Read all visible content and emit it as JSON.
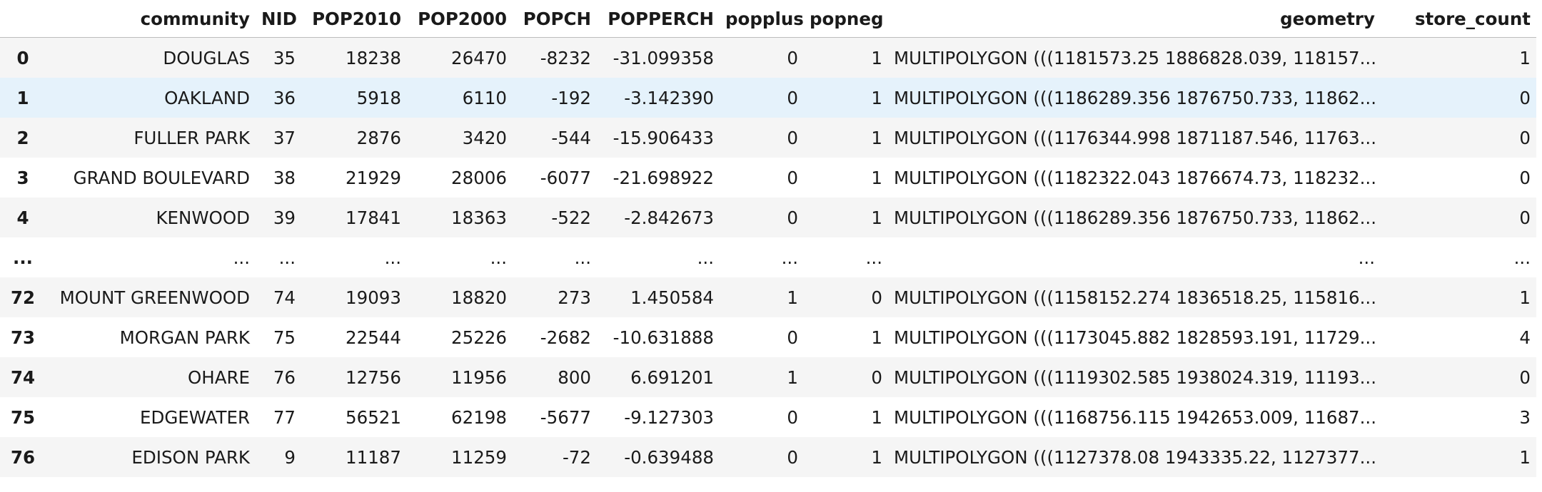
{
  "table": {
    "columns": [
      "",
      "community",
      "NID",
      "POP2010",
      "POP2000",
      "POPCH",
      "POPPERCH",
      "popplus",
      "popneg",
      "geometry",
      "store_count"
    ],
    "rows": [
      {
        "index": "0",
        "cells": [
          "DOUGLAS",
          "35",
          "18238",
          "26470",
          "-8232",
          "-31.099358",
          "0",
          "1",
          "MULTIPOLYGON (((1181573.25 1886828.039, 118157...",
          "1"
        ]
      },
      {
        "index": "1",
        "cells": [
          "OAKLAND",
          "36",
          "5918",
          "6110",
          "-192",
          "-3.142390",
          "0",
          "1",
          "MULTIPOLYGON (((1186289.356 1876750.733, 11862...",
          "0"
        ]
      },
      {
        "index": "2",
        "cells": [
          "FULLER PARK",
          "37",
          "2876",
          "3420",
          "-544",
          "-15.906433",
          "0",
          "1",
          "MULTIPOLYGON (((1176344.998 1871187.546, 11763...",
          "0"
        ]
      },
      {
        "index": "3",
        "cells": [
          "GRAND BOULEVARD",
          "38",
          "21929",
          "28006",
          "-6077",
          "-21.698922",
          "0",
          "1",
          "MULTIPOLYGON (((1182322.043 1876674.73, 118232...",
          "0"
        ]
      },
      {
        "index": "4",
        "cells": [
          "KENWOOD",
          "39",
          "17841",
          "18363",
          "-522",
          "-2.842673",
          "0",
          "1",
          "MULTIPOLYGON (((1186289.356 1876750.733, 11862...",
          "0"
        ]
      },
      {
        "index": "...",
        "cells": [
          "...",
          "...",
          "...",
          "...",
          "...",
          "...",
          "...",
          "...",
          "...",
          "..."
        ]
      },
      {
        "index": "72",
        "cells": [
          "MOUNT GREENWOOD",
          "74",
          "19093",
          "18820",
          "273",
          "1.450584",
          "1",
          "0",
          "MULTIPOLYGON (((1158152.274 1836518.25, 115816...",
          "1"
        ]
      },
      {
        "index": "73",
        "cells": [
          "MORGAN PARK",
          "75",
          "22544",
          "25226",
          "-2682",
          "-10.631888",
          "0",
          "1",
          "MULTIPOLYGON (((1173045.882 1828593.191, 11729...",
          "4"
        ]
      },
      {
        "index": "74",
        "cells": [
          "OHARE",
          "76",
          "12756",
          "11956",
          "800",
          "6.691201",
          "1",
          "0",
          "MULTIPOLYGON (((1119302.585 1938024.319, 11193...",
          "0"
        ]
      },
      {
        "index": "75",
        "cells": [
          "EDGEWATER",
          "77",
          "56521",
          "62198",
          "-5677",
          "-9.127303",
          "0",
          "1",
          "MULTIPOLYGON (((1168756.115 1942653.009, 11687...",
          "3"
        ]
      },
      {
        "index": "76",
        "cells": [
          "EDISON PARK",
          "9",
          "11187",
          "11259",
          "-72",
          "-0.639488",
          "0",
          "1",
          "MULTIPOLYGON (((1127378.08 1943335.22, 1127377...",
          "1"
        ]
      }
    ]
  },
  "colors": {
    "hover_row": "#e5f2fb",
    "stripe_row": "#f5f5f5",
    "header_rule": "#bdbdbd"
  }
}
